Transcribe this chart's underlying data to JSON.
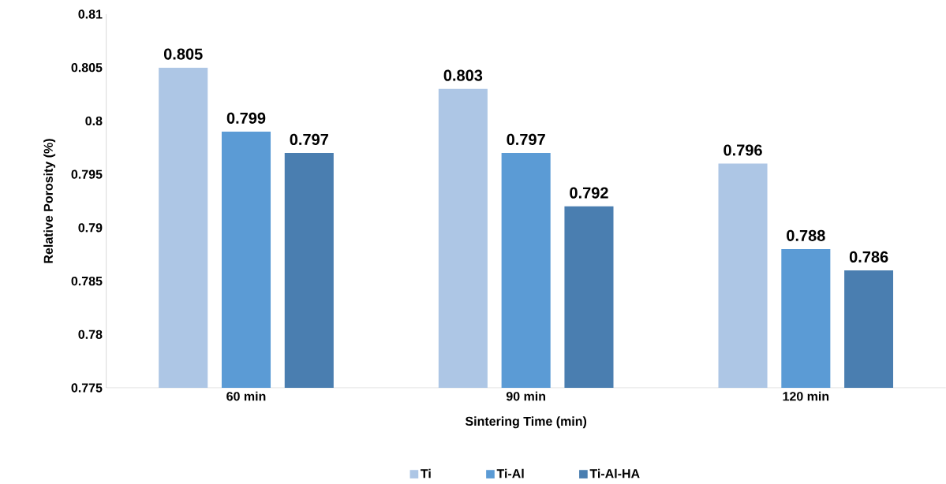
{
  "chart_data": {
    "type": "bar",
    "xlabel": "Sintering Time (min)",
    "ylabel": "Relative Porosity (%)",
    "categories": [
      "60 min",
      "90 min",
      "120 min"
    ],
    "series": [
      {
        "name": "Ti",
        "color": "#adc6e5",
        "values": [
          0.805,
          0.803,
          0.796
        ]
      },
      {
        "name": "Ti-Al",
        "color": "#5b9bd5",
        "values": [
          0.799,
          0.797,
          0.788
        ]
      },
      {
        "name": "Ti-Al-HA",
        "color": "#4a7eb0",
        "values": [
          0.797,
          0.792,
          0.786
        ]
      }
    ],
    "ylim": [
      0.775,
      0.81
    ],
    "yticks": [
      0.775,
      0.78,
      0.785,
      0.79,
      0.795,
      0.8,
      0.805,
      0.81
    ],
    "data_labels": true,
    "legend": "bottom",
    "grid": false
  }
}
